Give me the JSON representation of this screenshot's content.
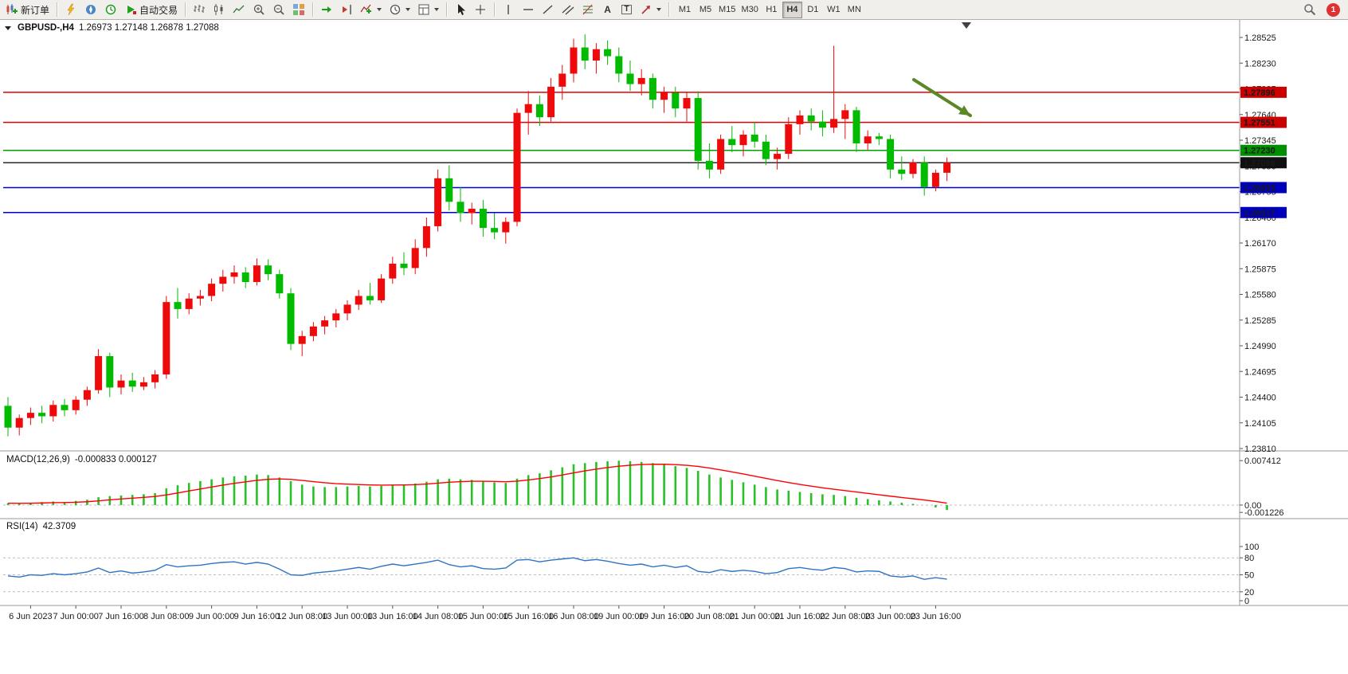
{
  "toolbar": {
    "new_order": "新订单",
    "auto_trading": "自动交易",
    "timeframes": [
      "M1",
      "M5",
      "M15",
      "M30",
      "H1",
      "H4",
      "D1",
      "W1",
      "MN"
    ],
    "active_timeframe": "H4",
    "notification_count": "1",
    "icons": {
      "text_tool": "A",
      "text_label_tool": "T"
    }
  },
  "chart_data": {
    "type": "candlestick",
    "title": "GBPUSD-,H4",
    "ohlc_display": "1.26973 1.27148 1.26878 1.27088",
    "symbol": "GBPUSD",
    "timeframe": "H4",
    "up_color": "#ee0a0a",
    "down_color": "#00bb00",
    "price_ylim": [
      1.2381,
      1.28525
    ],
    "price_axis_labels": [
      "1.28525",
      "1.28230",
      "1.27935",
      "1.27640",
      "1.27345",
      "1.27050",
      "1.26755",
      "1.26460",
      "1.26170",
      "1.25875",
      "1.25580",
      "1.25285",
      "1.24990",
      "1.24695",
      "1.24400",
      "1.24105",
      "1.23810"
    ],
    "time_axis_labels": [
      "6 Jun 2023",
      "7 Jun 00:00",
      "7 Jun 16:00",
      "8 Jun 08:00",
      "9 Jun 00:00",
      "9 Jun 16:00",
      "12 Jun 08:00",
      "13 Jun 00:00",
      "13 Jun 16:00",
      "14 Jun 08:00",
      "15 Jun 00:00",
      "15 Jun 16:00",
      "16 Jun 08:00",
      "19 Jun 00:00",
      "19 Jun 16:00",
      "20 Jun 08:00",
      "21 Jun 00:00",
      "21 Jun 16:00",
      "22 Jun 08:00",
      "23 Jun 00:00",
      "23 Jun 16:00"
    ],
    "candles": [
      [
        1.243,
        1.244,
        1.2395,
        1.2405
      ],
      [
        1.2405,
        1.242,
        1.2396,
        1.2416
      ],
      [
        1.2416,
        1.2428,
        1.2408,
        1.2422
      ],
      [
        1.2422,
        1.243,
        1.241,
        1.2418
      ],
      [
        1.2418,
        1.2436,
        1.2412,
        1.2431
      ],
      [
        1.2431,
        1.2438,
        1.2418,
        1.2425
      ],
      [
        1.2425,
        1.2441,
        1.242,
        1.2437
      ],
      [
        1.2437,
        1.2452,
        1.243,
        1.2448
      ],
      [
        1.2448,
        1.2495,
        1.2444,
        1.2487
      ],
      [
        1.2487,
        1.2491,
        1.244,
        1.2451
      ],
      [
        1.2451,
        1.2466,
        1.2443,
        1.2459
      ],
      [
        1.2459,
        1.2468,
        1.2446,
        1.2452
      ],
      [
        1.2452,
        1.2463,
        1.2448,
        1.2457
      ],
      [
        1.2457,
        1.2471,
        1.245,
        1.2466
      ],
      [
        1.2466,
        1.2556,
        1.2461,
        1.2549
      ],
      [
        1.2549,
        1.2565,
        1.253,
        1.2541
      ],
      [
        1.2541,
        1.2559,
        1.2535,
        1.2553
      ],
      [
        1.2553,
        1.2563,
        1.2545,
        1.2556
      ],
      [
        1.2556,
        1.2576,
        1.255,
        1.257
      ],
      [
        1.257,
        1.2586,
        1.2561,
        1.2578
      ],
      [
        1.2578,
        1.2591,
        1.257,
        1.2583
      ],
      [
        1.2583,
        1.2589,
        1.2565,
        1.2572
      ],
      [
        1.2572,
        1.2599,
        1.2568,
        1.2591
      ],
      [
        1.2591,
        1.2598,
        1.2574,
        1.2581
      ],
      [
        1.2581,
        1.2586,
        1.2553,
        1.2559
      ],
      [
        1.2559,
        1.2565,
        1.2494,
        1.2501
      ],
      [
        1.2501,
        1.2516,
        1.2487,
        1.251
      ],
      [
        1.251,
        1.2526,
        1.2504,
        1.2521
      ],
      [
        1.2521,
        1.2533,
        1.2512,
        1.2528
      ],
      [
        1.2528,
        1.2541,
        1.252,
        1.2536
      ],
      [
        1.2536,
        1.2551,
        1.2528,
        1.2546
      ],
      [
        1.2546,
        1.2563,
        1.254,
        1.2556
      ],
      [
        1.2556,
        1.2571,
        1.2546,
        1.2551
      ],
      [
        1.2551,
        1.2581,
        1.2548,
        1.2576
      ],
      [
        1.2576,
        1.2601,
        1.257,
        1.2593
      ],
      [
        1.2593,
        1.2606,
        1.258,
        1.2588
      ],
      [
        1.2588,
        1.2621,
        1.2581,
        1.2611
      ],
      [
        1.2611,
        1.2646,
        1.2601,
        1.2636
      ],
      [
        1.2636,
        1.2701,
        1.263,
        1.2691
      ],
      [
        1.2691,
        1.2706,
        1.2654,
        1.2664
      ],
      [
        1.2664,
        1.2681,
        1.2641,
        1.2651
      ],
      [
        1.2651,
        1.2663,
        1.2638,
        1.2656
      ],
      [
        1.2656,
        1.2666,
        1.2624,
        1.2634
      ],
      [
        1.2634,
        1.2651,
        1.2621,
        1.2629
      ],
      [
        1.2629,
        1.2646,
        1.2616,
        1.2641
      ],
      [
        1.2641,
        1.2771,
        1.2636,
        1.2766
      ],
      [
        1.2766,
        1.2791,
        1.2741,
        1.2776
      ],
      [
        1.2776,
        1.2786,
        1.2751,
        1.2761
      ],
      [
        1.2761,
        1.2806,
        1.2756,
        1.2796
      ],
      [
        1.2796,
        1.2821,
        1.2781,
        1.2811
      ],
      [
        1.2811,
        1.2851,
        1.2801,
        1.2841
      ],
      [
        1.2841,
        1.2856,
        1.2816,
        1.2826
      ],
      [
        1.2826,
        1.2846,
        1.2811,
        1.2839
      ],
      [
        1.2839,
        1.2849,
        1.2821,
        1.2831
      ],
      [
        1.2831,
        1.2841,
        1.2801,
        1.2811
      ],
      [
        1.2811,
        1.2826,
        1.2791,
        1.2799
      ],
      [
        1.2799,
        1.2816,
        1.2786,
        1.2806
      ],
      [
        1.2806,
        1.2811,
        1.2771,
        1.2781
      ],
      [
        1.2781,
        1.2796,
        1.2766,
        1.2789
      ],
      [
        1.2789,
        1.2796,
        1.2761,
        1.2771
      ],
      [
        1.2771,
        1.2789,
        1.2756,
        1.2783
      ],
      [
        1.2783,
        1.2791,
        1.2701,
        1.2711
      ],
      [
        1.2711,
        1.2731,
        1.2691,
        1.2701
      ],
      [
        1.2701,
        1.2741,
        1.2696,
        1.2736
      ],
      [
        1.2736,
        1.2751,
        1.2721,
        1.2729
      ],
      [
        1.2729,
        1.2746,
        1.2716,
        1.2741
      ],
      [
        1.2741,
        1.2756,
        1.2726,
        1.2733
      ],
      [
        1.2733,
        1.2741,
        1.2706,
        1.2713
      ],
      [
        1.2713,
        1.2726,
        1.2701,
        1.2719
      ],
      [
        1.2719,
        1.2761,
        1.2713,
        1.2753
      ],
      [
        1.2753,
        1.2769,
        1.2741,
        1.2763
      ],
      [
        1.2763,
        1.2771,
        1.2746,
        1.2756
      ],
      [
        1.2756,
        1.2769,
        1.2739,
        1.2749
      ],
      [
        1.2749,
        1.2843,
        1.2743,
        1.2759
      ],
      [
        1.2759,
        1.2776,
        1.2736,
        1.2769
      ],
      [
        1.2769,
        1.2773,
        1.2721,
        1.2731
      ],
      [
        1.2731,
        1.2746,
        1.2723,
        1.2739
      ],
      [
        1.2739,
        1.2743,
        1.2729,
        1.2736
      ],
      [
        1.2736,
        1.2741,
        1.2691,
        1.2701
      ],
      [
        1.2701,
        1.2716,
        1.2689,
        1.2696
      ],
      [
        1.2696,
        1.2713,
        1.2691,
        1.2709
      ],
      [
        1.2709,
        1.2716,
        1.2671,
        1.2681
      ],
      [
        1.2681,
        1.2701,
        1.2676,
        1.26973
      ],
      [
        1.26973,
        1.27148,
        1.26878,
        1.27088
      ]
    ],
    "objects": {
      "hlines": [
        {
          "price": 1.27896,
          "label": "1.27896",
          "color": "#e00000",
          "badge_color": "#cc0000"
        },
        {
          "price": 1.27551,
          "label": "1.27551",
          "color": "#e00000",
          "badge_color": "#cc0000"
        },
        {
          "price": 1.2723,
          "label": "1.27230",
          "color": "#00a000",
          "badge_color": "#008f00"
        },
        {
          "price": 1.27088,
          "label": "1.27088",
          "color": "#2a2a2a",
          "badge_color": "#101010"
        },
        {
          "price": 1.26803,
          "label": "1.26803",
          "color": "#0000cc",
          "badge_color": "#0000bb"
        },
        {
          "price": 1.26517,
          "label": "1.26517",
          "color": "#0000cc",
          "badge_color": "#0000bb"
        }
      ],
      "arrow": {
        "from": [
          1147,
          75
        ],
        "to": [
          1218,
          120
        ],
        "color": "#5c8727"
      }
    },
    "indicators": {
      "macd": {
        "label": "MACD(12,26,9)",
        "current_text": "-0.000833 0.000127",
        "histogram_color": "#28c128",
        "signal_color": "#ff0000",
        "signal_smoothing": 0.2,
        "ylim": [
          -0.002,
          0.0085
        ],
        "scale_labels": [
          "0.007412",
          "0.00",
          "-0.001226"
        ],
        "values": [
          0.0003,
          0.0002,
          0.0004,
          0.0005,
          0.0006,
          0.0005,
          0.0007,
          0.0009,
          0.0013,
          0.0015,
          0.0016,
          0.0017,
          0.0018,
          0.002,
          0.0028,
          0.0033,
          0.0037,
          0.004,
          0.0043,
          0.0046,
          0.0048,
          0.0049,
          0.0051,
          0.005,
          0.0046,
          0.004,
          0.0034,
          0.0031,
          0.003,
          0.003,
          0.0031,
          0.0032,
          0.0031,
          0.0032,
          0.0034,
          0.0034,
          0.0036,
          0.0039,
          0.0043,
          0.0044,
          0.0043,
          0.0042,
          0.004,
          0.0038,
          0.0037,
          0.0044,
          0.005,
          0.0053,
          0.0058,
          0.0063,
          0.0068,
          0.007,
          0.0072,
          0.0073,
          0.0074,
          0.0073,
          0.0072,
          0.007,
          0.0068,
          0.0065,
          0.0062,
          0.0057,
          0.0051,
          0.0046,
          0.0042,
          0.0038,
          0.0034,
          0.003,
          0.0026,
          0.0024,
          0.0022,
          0.002,
          0.0018,
          0.0017,
          0.0015,
          0.0012,
          0.001,
          0.0008,
          0.0006,
          0.0004,
          0.0002,
          0.0,
          -0.0004,
          -0.000833
        ]
      },
      "rsi": {
        "label": "RSI(14)",
        "current_text": "42.3709",
        "line_color": "#2d74c4",
        "ylim": [
          0,
          100
        ],
        "levels": [
          80,
          50,
          20
        ],
        "scale_labels": [
          "100",
          "80",
          "50",
          "20",
          "0"
        ],
        "values": [
          48,
          46,
          50,
          49,
          52,
          50,
          52,
          55,
          62,
          54,
          57,
          53,
          55,
          58,
          68,
          64,
          66,
          67,
          70,
          72,
          73,
          69,
          72,
          69,
          60,
          50,
          49,
          53,
          55,
          57,
          60,
          63,
          60,
          65,
          69,
          66,
          69,
          72,
          76,
          68,
          64,
          66,
          61,
          60,
          62,
          76,
          77,
          73,
          76,
          78,
          80,
          75,
          77,
          74,
          70,
          67,
          69,
          64,
          67,
          63,
          66,
          56,
          54,
          59,
          56,
          58,
          56,
          52,
          54,
          61,
          63,
          60,
          58,
          63,
          61,
          55,
          57,
          56,
          48,
          46,
          48,
          42,
          45,
          42.37
        ]
      }
    }
  }
}
